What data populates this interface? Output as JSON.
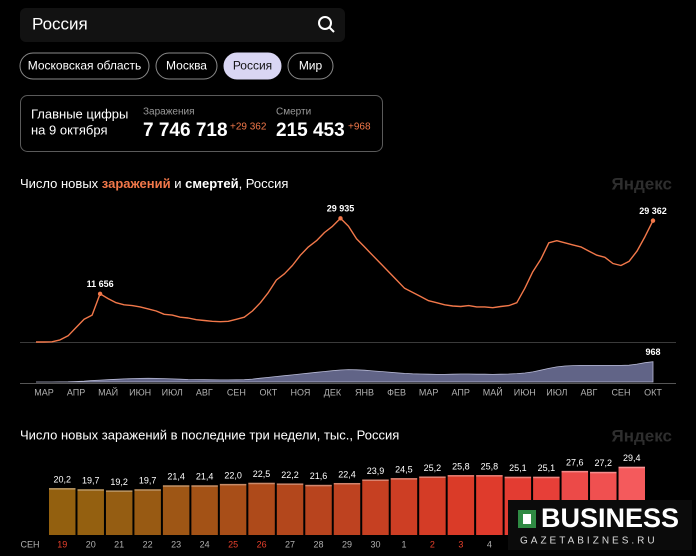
{
  "search": {
    "query": "Россия"
  },
  "tabs": {
    "items": [
      "Московская область",
      "Москва",
      "Россия",
      "Мир"
    ],
    "active": 2
  },
  "summary": {
    "heading": [
      "Главные цифры",
      "на 9 октября"
    ],
    "cases": {
      "label": "Заражения",
      "total": "7 746 718",
      "delta": "+29 362"
    },
    "deaths": {
      "label": "Смерти",
      "total": "215 453",
      "delta": "+968"
    }
  },
  "watermark": {
    "brand": "Яндекс",
    "site_title": "BUSINESS",
    "site_url": "GAZETABIZNES.RU"
  },
  "chart_data": [
    {
      "type": "line",
      "title_parts": [
        "Число новых",
        "заражений",
        "и",
        "смертей",
        ", Россия"
      ],
      "categories": [
        "МАР",
        null,
        null,
        null,
        "АПР",
        null,
        null,
        null,
        "МАЙ",
        null,
        null,
        null,
        "ИЮН",
        null,
        null,
        null,
        "ИЮЛ",
        null,
        null,
        null,
        "АВГ",
        null,
        null,
        null,
        "СЕН",
        null,
        null,
        null,
        "ОКТ",
        null,
        null,
        null,
        "НОЯ",
        null,
        null,
        null,
        "ДЕК",
        null,
        null,
        null,
        "ЯНВ",
        null,
        null,
        null,
        "ФЕВ",
        null,
        null,
        null,
        "МАР",
        null,
        null,
        null,
        "АПР",
        null,
        null,
        null,
        "МАЙ",
        null,
        null,
        null,
        "ИЮН",
        null,
        null,
        null,
        "ИЮЛ",
        null,
        null,
        null,
        "АВГ",
        null,
        null,
        null,
        "СЕН",
        null,
        null,
        null,
        "ОКТ",
        null
      ],
      "ylim": [
        0,
        30000
      ],
      "y2lim": [
        0,
        1000
      ],
      "series": [
        {
          "type": "line",
          "color": "#f2784a",
          "values": [
            0,
            0,
            50,
            500,
            1500,
            3500,
            5500,
            6500,
            11656,
            10500,
            9500,
            9000,
            8800,
            8500,
            8000,
            7500,
            6700,
            6500,
            6000,
            5800,
            5400,
            5200,
            5000,
            4900,
            5000,
            5500,
            6000,
            7500,
            9500,
            12000,
            15000,
            16500,
            18500,
            21000,
            23000,
            24500,
            26500,
            28000,
            29935,
            28000,
            25000,
            23000,
            21000,
            19000,
            17000,
            15000,
            13000,
            12000,
            11000,
            10000,
            9500,
            9000,
            8700,
            8600,
            8800,
            8500,
            8500,
            8300,
            8600,
            8800,
            9500,
            13000,
            17000,
            20000,
            24000,
            24500,
            24000,
            23500,
            23000,
            22000,
            21000,
            20500,
            19000,
            18500,
            19500,
            22000,
            25500,
            29362
          ],
          "value_labels": [
            null,
            null,
            null,
            null,
            null,
            null,
            null,
            null,
            "11 656",
            null,
            null,
            null,
            null,
            null,
            null,
            null,
            null,
            null,
            null,
            null,
            null,
            null,
            null,
            null,
            null,
            null,
            null,
            null,
            null,
            null,
            null,
            null,
            null,
            null,
            null,
            null,
            null,
            null,
            "29 935",
            null,
            null,
            null,
            null,
            null,
            null,
            null,
            null,
            null,
            null,
            null,
            null,
            null,
            null,
            null,
            null,
            null,
            null,
            null,
            null,
            null,
            null,
            null,
            null,
            null,
            null,
            null,
            null,
            null,
            null,
            null,
            null,
            null,
            null,
            null,
            null,
            null,
            null,
            "29 362"
          ]
        },
        {
          "type": "area",
          "axis": "y2",
          "color": "#8286b4",
          "values": [
            0,
            0,
            1,
            3,
            10,
            25,
            45,
            70,
            90,
            110,
            130,
            150,
            160,
            170,
            175,
            170,
            160,
            150,
            135,
            120,
            115,
            110,
            105,
            100,
            100,
            105,
            110,
            140,
            180,
            220,
            260,
            300,
            340,
            380,
            420,
            460,
            500,
            540,
            570,
            590,
            580,
            560,
            530,
            500,
            470,
            440,
            410,
            390,
            380,
            370,
            360,
            360,
            370,
            380,
            380,
            370,
            370,
            360,
            370,
            380,
            400,
            430,
            480,
            560,
            650,
            720,
            760,
            780,
            790,
            790,
            790,
            790,
            790,
            790,
            800,
            850,
            920,
            968
          ],
          "value_labels": [
            null,
            null,
            null,
            null,
            null,
            null,
            null,
            null,
            null,
            null,
            null,
            null,
            null,
            null,
            null,
            null,
            null,
            null,
            null,
            null,
            null,
            null,
            null,
            null,
            null,
            null,
            null,
            null,
            null,
            null,
            null,
            null,
            null,
            null,
            null,
            null,
            null,
            null,
            null,
            null,
            null,
            null,
            null,
            null,
            null,
            null,
            null,
            null,
            null,
            null,
            null,
            null,
            null,
            null,
            null,
            null,
            null,
            null,
            null,
            null,
            null,
            null,
            null,
            null,
            null,
            null,
            null,
            null,
            null,
            null,
            null,
            null,
            null,
            null,
            null,
            null,
            null,
            "968"
          ]
        }
      ]
    },
    {
      "type": "bar",
      "title": "Число новых заражений в последние три недели, тыс., Россия",
      "axis_month": "СЕН",
      "categories": [
        "19",
        "20",
        "21",
        "22",
        "23",
        "24",
        "25",
        "26",
        "27",
        "28",
        "29",
        "30",
        "1",
        "2",
        "3",
        "4",
        null,
        null,
        null,
        null,
        null
      ],
      "category_colors": [
        "#e8402c",
        "#b0b0b0",
        "#b0b0b0",
        "#b0b0b0",
        "#b0b0b0",
        "#b0b0b0",
        "#e8402c",
        "#e8402c",
        "#b0b0b0",
        "#b0b0b0",
        "#b0b0b0",
        "#b0b0b0",
        "#b0b0b0",
        "#e8402c",
        "#e8402c",
        "#b0b0b0",
        "#b0b0b0",
        "#b0b0b0",
        "#b0b0b0",
        "#b0b0b0",
        "#b0b0b0"
      ],
      "values": [
        20.2,
        19.7,
        19.2,
        19.7,
        21.4,
        21.4,
        22.0,
        22.5,
        22.2,
        21.6,
        22.4,
        23.9,
        24.5,
        25.2,
        25.8,
        25.8,
        25.1,
        25.1,
        27.6,
        27.2,
        29.4
      ],
      "value_labels": [
        "20,2",
        "19,7",
        "19,2",
        "19,7",
        "21,4",
        "21,4",
        "22,0",
        "22,5",
        "22,2",
        "21,6",
        "22,4",
        "23,9",
        "24,5",
        "25,2",
        "25,8",
        "25,8",
        "25,1",
        "25,1",
        "27,6",
        "27,2",
        "29,4"
      ],
      "colors": [
        "#93600f",
        "#946010",
        "#955d12",
        "#985a13",
        "#9e5615",
        "#a35216",
        "#a84e18",
        "#ae4a1a",
        "#b3471c",
        "#b8441e",
        "#be4220",
        "#c64022",
        "#cd3e24",
        "#d43c26",
        "#da3b28",
        "#df3b2c",
        "#e33c32",
        "#e73f38",
        "#ec4a48",
        "#f05050",
        "#f45a5c"
      ],
      "ylim": [
        0,
        31
      ]
    }
  ]
}
